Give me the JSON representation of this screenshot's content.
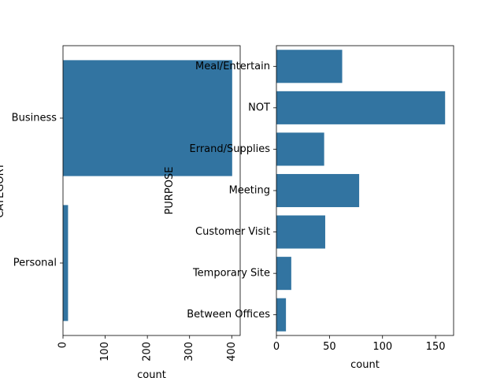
{
  "chart_data": [
    {
      "type": "bar",
      "orientation": "horizontal",
      "categories": [
        "Business",
        "Personal"
      ],
      "values": [
        401,
        12
      ],
      "xlabel": "count",
      "ylabel": "CATEGORY",
      "xlim": [
        0,
        420
      ],
      "xticks": [
        0,
        100,
        200,
        300,
        400
      ],
      "xtick_rotation": 90,
      "grid": false,
      "bar_color": "#3274a1"
    },
    {
      "type": "bar",
      "orientation": "horizontal",
      "categories": [
        "Meal/Entertain",
        "NOT",
        "Errand/Supplies",
        "Meeting",
        "Customer Visit",
        "Temporary Site",
        "Between Offices"
      ],
      "values": [
        62,
        159,
        45,
        78,
        46,
        14,
        9
      ],
      "xlabel": "count",
      "ylabel": "PURPOSE",
      "xlim": [
        0,
        167
      ],
      "xticks": [
        0,
        50,
        100,
        150
      ],
      "xtick_rotation": 0,
      "grid": false,
      "bar_color": "#3274a1"
    }
  ]
}
